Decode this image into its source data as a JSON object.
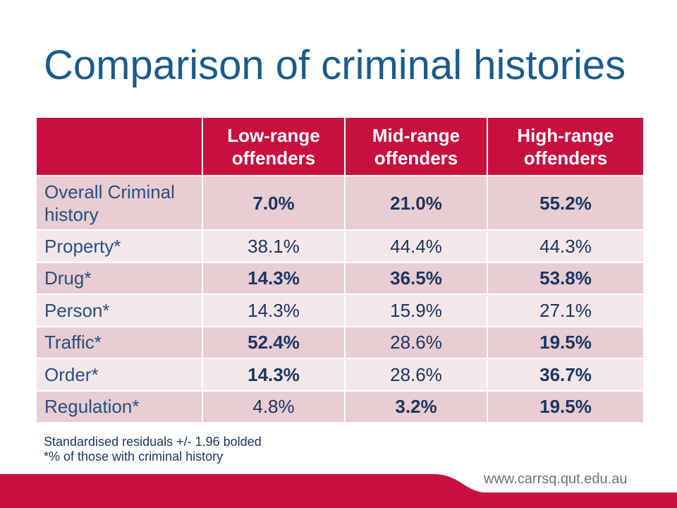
{
  "slide": {
    "title": "Comparison of criminal histories",
    "footnotes": [
      "Standardised residuals +/- 1.96 bolded",
      "*% of those with criminal history"
    ],
    "url": "www.carrsq.qut.edu.au"
  },
  "table": {
    "columns": [
      "Low-range offenders",
      "Mid-range offenders",
      "High-range offenders"
    ],
    "rows": [
      {
        "label": "Overall Criminal history",
        "values": [
          "7.0%",
          "21.0%",
          "55.2%"
        ],
        "bold": [
          true,
          true,
          true
        ]
      },
      {
        "label": "Property*",
        "values": [
          "38.1%",
          "44.4%",
          "44.3%"
        ],
        "bold": [
          false,
          false,
          false
        ]
      },
      {
        "label": "Drug*",
        "values": [
          "14.3%",
          "36.5%",
          "53.8%"
        ],
        "bold": [
          true,
          true,
          true
        ]
      },
      {
        "label": "Person*",
        "values": [
          "14.3%",
          "15.9%",
          "27.1%"
        ],
        "bold": [
          false,
          false,
          false
        ]
      },
      {
        "label": "Traffic*",
        "values": [
          "52.4%",
          "28.6%",
          "19.5%"
        ],
        "bold": [
          true,
          false,
          true
        ]
      },
      {
        "label": "Order*",
        "values": [
          "14.3%",
          "28.6%",
          "36.7%"
        ],
        "bold": [
          true,
          false,
          true
        ]
      },
      {
        "label": "Regulation*",
        "values": [
          "4.8%",
          "3.2%",
          "19.5%"
        ],
        "bold": [
          false,
          true,
          true
        ]
      }
    ]
  },
  "colors": {
    "title": "#1a5b8a",
    "header_background": "#c8103e",
    "header_text": "#ffffff",
    "row_dark": "#e8cdd2",
    "row_light": "#f4e7ea",
    "label_text": "#264f80",
    "value_text": "#1b3660",
    "footnote_text": "#1b3660",
    "footer_red": "#c8103e",
    "url_text": "#707070"
  }
}
